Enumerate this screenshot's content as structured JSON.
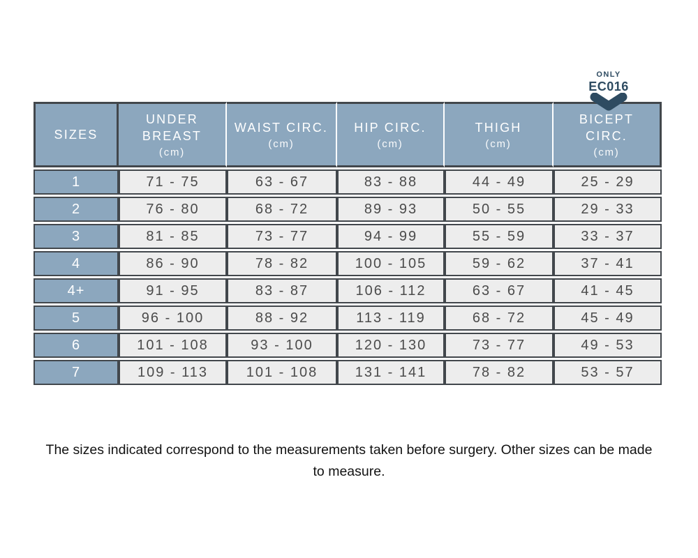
{
  "annotation": {
    "only_label": "ONLY",
    "code": "EC016",
    "color": "#2E4B61"
  },
  "table": {
    "columns": [
      {
        "label": "SIZES",
        "unit": ""
      },
      {
        "label": "UNDER BREAST",
        "unit": "(cm)"
      },
      {
        "label": "WAIST CIRC.",
        "unit": "(cm)"
      },
      {
        "label": "HIP CIRC.",
        "unit": "(cm)"
      },
      {
        "label": "THIGH",
        "unit": "(cm)"
      },
      {
        "label": "BICEPT CIRC.",
        "unit": "(cm)"
      }
    ],
    "rows": [
      {
        "size": "1",
        "values": [
          "71 - 75",
          "63 - 67",
          "83 - 88",
          "44 - 49",
          "25 - 29"
        ]
      },
      {
        "size": "2",
        "values": [
          "76 - 80",
          "68 - 72",
          "89 - 93",
          "50 - 55",
          "29 - 33"
        ]
      },
      {
        "size": "3",
        "values": [
          "81 - 85",
          "73 - 77",
          "94 - 99",
          "55 - 59",
          "33 - 37"
        ]
      },
      {
        "size": "4",
        "values": [
          "86 - 90",
          "78 - 82",
          "100 - 105",
          "59 - 62",
          "37 - 41"
        ]
      },
      {
        "size": "4+",
        "values": [
          "91 - 95",
          "83 - 87",
          "106 - 112",
          "63 - 67",
          "41 - 45"
        ]
      },
      {
        "size": "5",
        "values": [
          "96 - 100",
          "88 - 92",
          "113 - 119",
          "68 - 72",
          "45 - 49"
        ]
      },
      {
        "size": "6",
        "values": [
          "101 - 108",
          "93 - 100",
          "120 - 130",
          "73 - 77",
          "49 - 53"
        ]
      },
      {
        "size": "7",
        "values": [
          "109 - 113",
          "101 - 108",
          "131 - 141",
          "78 - 82",
          "53 - 57"
        ]
      }
    ],
    "colors": {
      "header_bg": "#8CA7BE",
      "border": "#42474C",
      "cell_bg": "#EDEDED",
      "cell_text": "#4B4B4B"
    }
  },
  "footer": {
    "note": "The sizes indicated correspond to the measurements taken before surgery. Other sizes can be made to measure."
  }
}
